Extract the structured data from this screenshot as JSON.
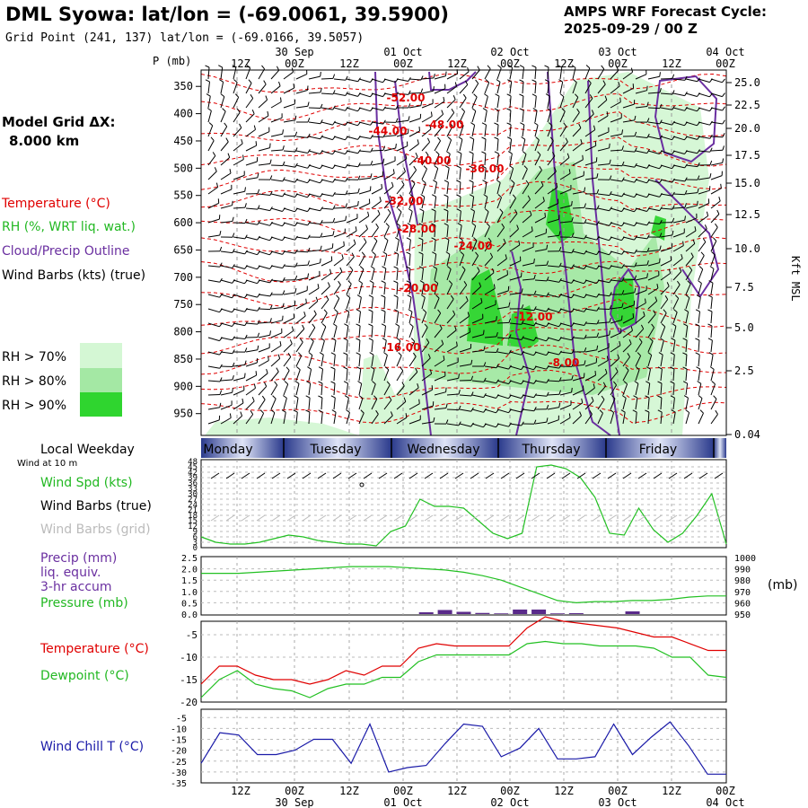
{
  "header": {
    "title": "DML Syowa:  lat/lon = (-69.0061, 39.5900)",
    "grid_point": "Grid Point (241, 137) lat/lon = (-69.0166, 39.5057)",
    "cycle_line1": "AMPS WRF Forecast Cycle:",
    "cycle_line2": "2025-09-29 / 00  Z"
  },
  "side": {
    "model_grid_line1": "Model Grid ΔX:",
    "model_grid_line2": "8.000 km",
    "temperature": "Temperature (°C)",
    "rh": "RH (%, WRT liq. wat.)",
    "cloud": "Cloud/Precip Outline",
    "wind_barbs": "Wind Barbs (kts) (true)",
    "rh70": "RH > 70%",
    "rh80": "RH > 80%",
    "rh90": "RH > 90%",
    "p_label": "P (mb)",
    "kft_label": "Kft MSL"
  },
  "colors": {
    "temperature": "#e00000",
    "rh70": "#d4f7d4",
    "rh80": "#a4e8a4",
    "rh90": "#2fd52f",
    "cloud": "#6a2fa0",
    "wind": "#000000",
    "windspd": "#22c022",
    "pressure": "#22c022",
    "precip": "#5a2a8a",
    "dewpoint": "#22c022",
    "windchill": "#1a1aa8"
  },
  "time_axis": {
    "top_dates": [
      "30 Sep",
      "01 Oct",
      "02 Oct",
      "03 Oct",
      "04 Oct"
    ],
    "hour_labels": [
      "12Z",
      "00Z",
      "12Z",
      "00Z",
      "12Z",
      "00Z",
      "12Z",
      "00Z",
      "12Z",
      "00Z"
    ],
    "bottom_dates": [
      "30 Sep",
      "01 Oct",
      "02 Oct",
      "03 Oct",
      "04 Oct"
    ]
  },
  "weekday": {
    "title": "Local Weekday",
    "days": [
      "Monday",
      "Tuesday",
      "Wednesday",
      "Thursday",
      "Friday"
    ],
    "wind_at": "Wind at 10 m"
  },
  "panel_labels": {
    "wind_spd": "Wind Spd (kts)",
    "wind_barbs_true": "Wind Barbs (true)",
    "wind_barbs_grid": "Wind Barbs (grid)",
    "precip1": "Precip (mm)",
    "precip2": "liq. equiv.",
    "precip3": "3-hr accum",
    "pressure": "Pressure (mb)",
    "pressure_unit": "(mb)",
    "temperature": "Temperature (°C)",
    "dewpoint": "Dewpoint (°C)",
    "windchill": "Wind Chill T (°C)"
  },
  "chart_data": [
    {
      "type": "contour",
      "name": "cross-section",
      "y_left_label": "P (mb)",
      "y_left_ticks": [
        350,
        400,
        450,
        500,
        550,
        600,
        650,
        700,
        750,
        800,
        850,
        900,
        950
      ],
      "y_right_label": "Kft MSL",
      "y_right_ticks": [
        "25.0",
        "22.5",
        "20.0",
        "17.5",
        "15.0",
        "12.5",
        "10.0",
        "7.5",
        "5.0",
        "2.5",
        "0.04"
      ],
      "temperature_contour_labels": [
        "-52.00",
        "-48.00",
        "-44.00",
        "-40.00",
        "-36.00",
        "-32.00",
        "-28.00",
        "-24.00",
        "-20.00",
        "-12.00",
        "-16.00",
        "-8.00"
      ]
    },
    {
      "type": "line",
      "name": "wind-speed",
      "ylim": [
        0,
        48
      ],
      "y_ticks": [
        "48",
        "45",
        "42",
        "39",
        "36",
        "33",
        "30",
        "27",
        "24",
        "21",
        "18",
        "15",
        "12",
        "9",
        "6",
        "3",
        "0"
      ],
      "values": [
        6,
        3,
        2,
        2,
        3,
        5,
        7,
        6,
        4,
        3,
        2,
        2,
        1,
        9,
        12,
        27,
        23,
        23,
        22,
        15,
        8,
        5,
        8,
        45,
        46,
        44,
        39,
        28,
        8,
        7,
        22,
        10,
        3,
        8,
        18,
        30,
        2
      ]
    },
    {
      "type": "line+bar",
      "name": "pressure-precip",
      "left_ticks": [
        "2.5",
        "2.0",
        "1.5",
        "1.0",
        "0.5",
        "0.0"
      ],
      "right_ticks": [
        "1000",
        "990",
        "980",
        "970",
        "960",
        "950"
      ],
      "pressure": [
        986,
        986,
        986,
        987,
        988,
        989,
        990,
        991,
        992,
        992,
        992,
        991,
        990,
        989,
        987,
        984,
        980,
        974,
        968,
        962,
        960,
        961,
        961,
        962,
        962,
        963,
        965,
        966,
        966
      ],
      "precip": [
        0,
        0,
        0,
        0,
        0,
        0,
        0,
        0,
        0,
        0,
        0,
        0,
        0.08,
        0.18,
        0.1,
        0.05,
        0.03,
        0.2,
        0.2,
        0.03,
        0.04,
        0,
        0,
        0.12,
        0,
        0,
        0,
        0,
        0
      ]
    },
    {
      "type": "line",
      "name": "temperature-dewpoint",
      "y_ticks": [
        "-5",
        "-10",
        "-15",
        "-20"
      ],
      "temperature": [
        -16,
        -12,
        -12,
        -14,
        -15,
        -15,
        -16,
        -15,
        -13,
        -14,
        -12,
        -12,
        -8,
        -7,
        -7.5,
        -7.5,
        -7.5,
        -7.5,
        -3.5,
        -1,
        -2,
        -2.5,
        -3,
        -3.5,
        -4.5,
        -5.5,
        -5.5,
        -7,
        -8.5,
        -8.5
      ],
      "dewpoint": [
        -19,
        -15,
        -13,
        -16,
        -17,
        -17.5,
        -19,
        -17,
        -16,
        -16,
        -14.5,
        -14.5,
        -11,
        -9.5,
        -9.5,
        -9.5,
        -9.5,
        -9.5,
        -7,
        -6.5,
        -7,
        -7,
        -7.5,
        -7.5,
        -7.5,
        -8,
        -10,
        -10,
        -14,
        -14.5
      ]
    },
    {
      "type": "line",
      "name": "wind-chill",
      "y_ticks": [
        "-5",
        "-10",
        "-15",
        "-20",
        "-25",
        "-30",
        "-35"
      ],
      "values": [
        -26,
        -12,
        -13,
        -22,
        -22,
        -20,
        -15,
        -15,
        -26,
        -8,
        -30,
        -28,
        -27,
        -17,
        -8,
        -9,
        -23,
        -19,
        -10,
        -24,
        -24,
        -23,
        -8,
        -22,
        -14,
        -7,
        -18,
        -31,
        -31
      ]
    }
  ]
}
